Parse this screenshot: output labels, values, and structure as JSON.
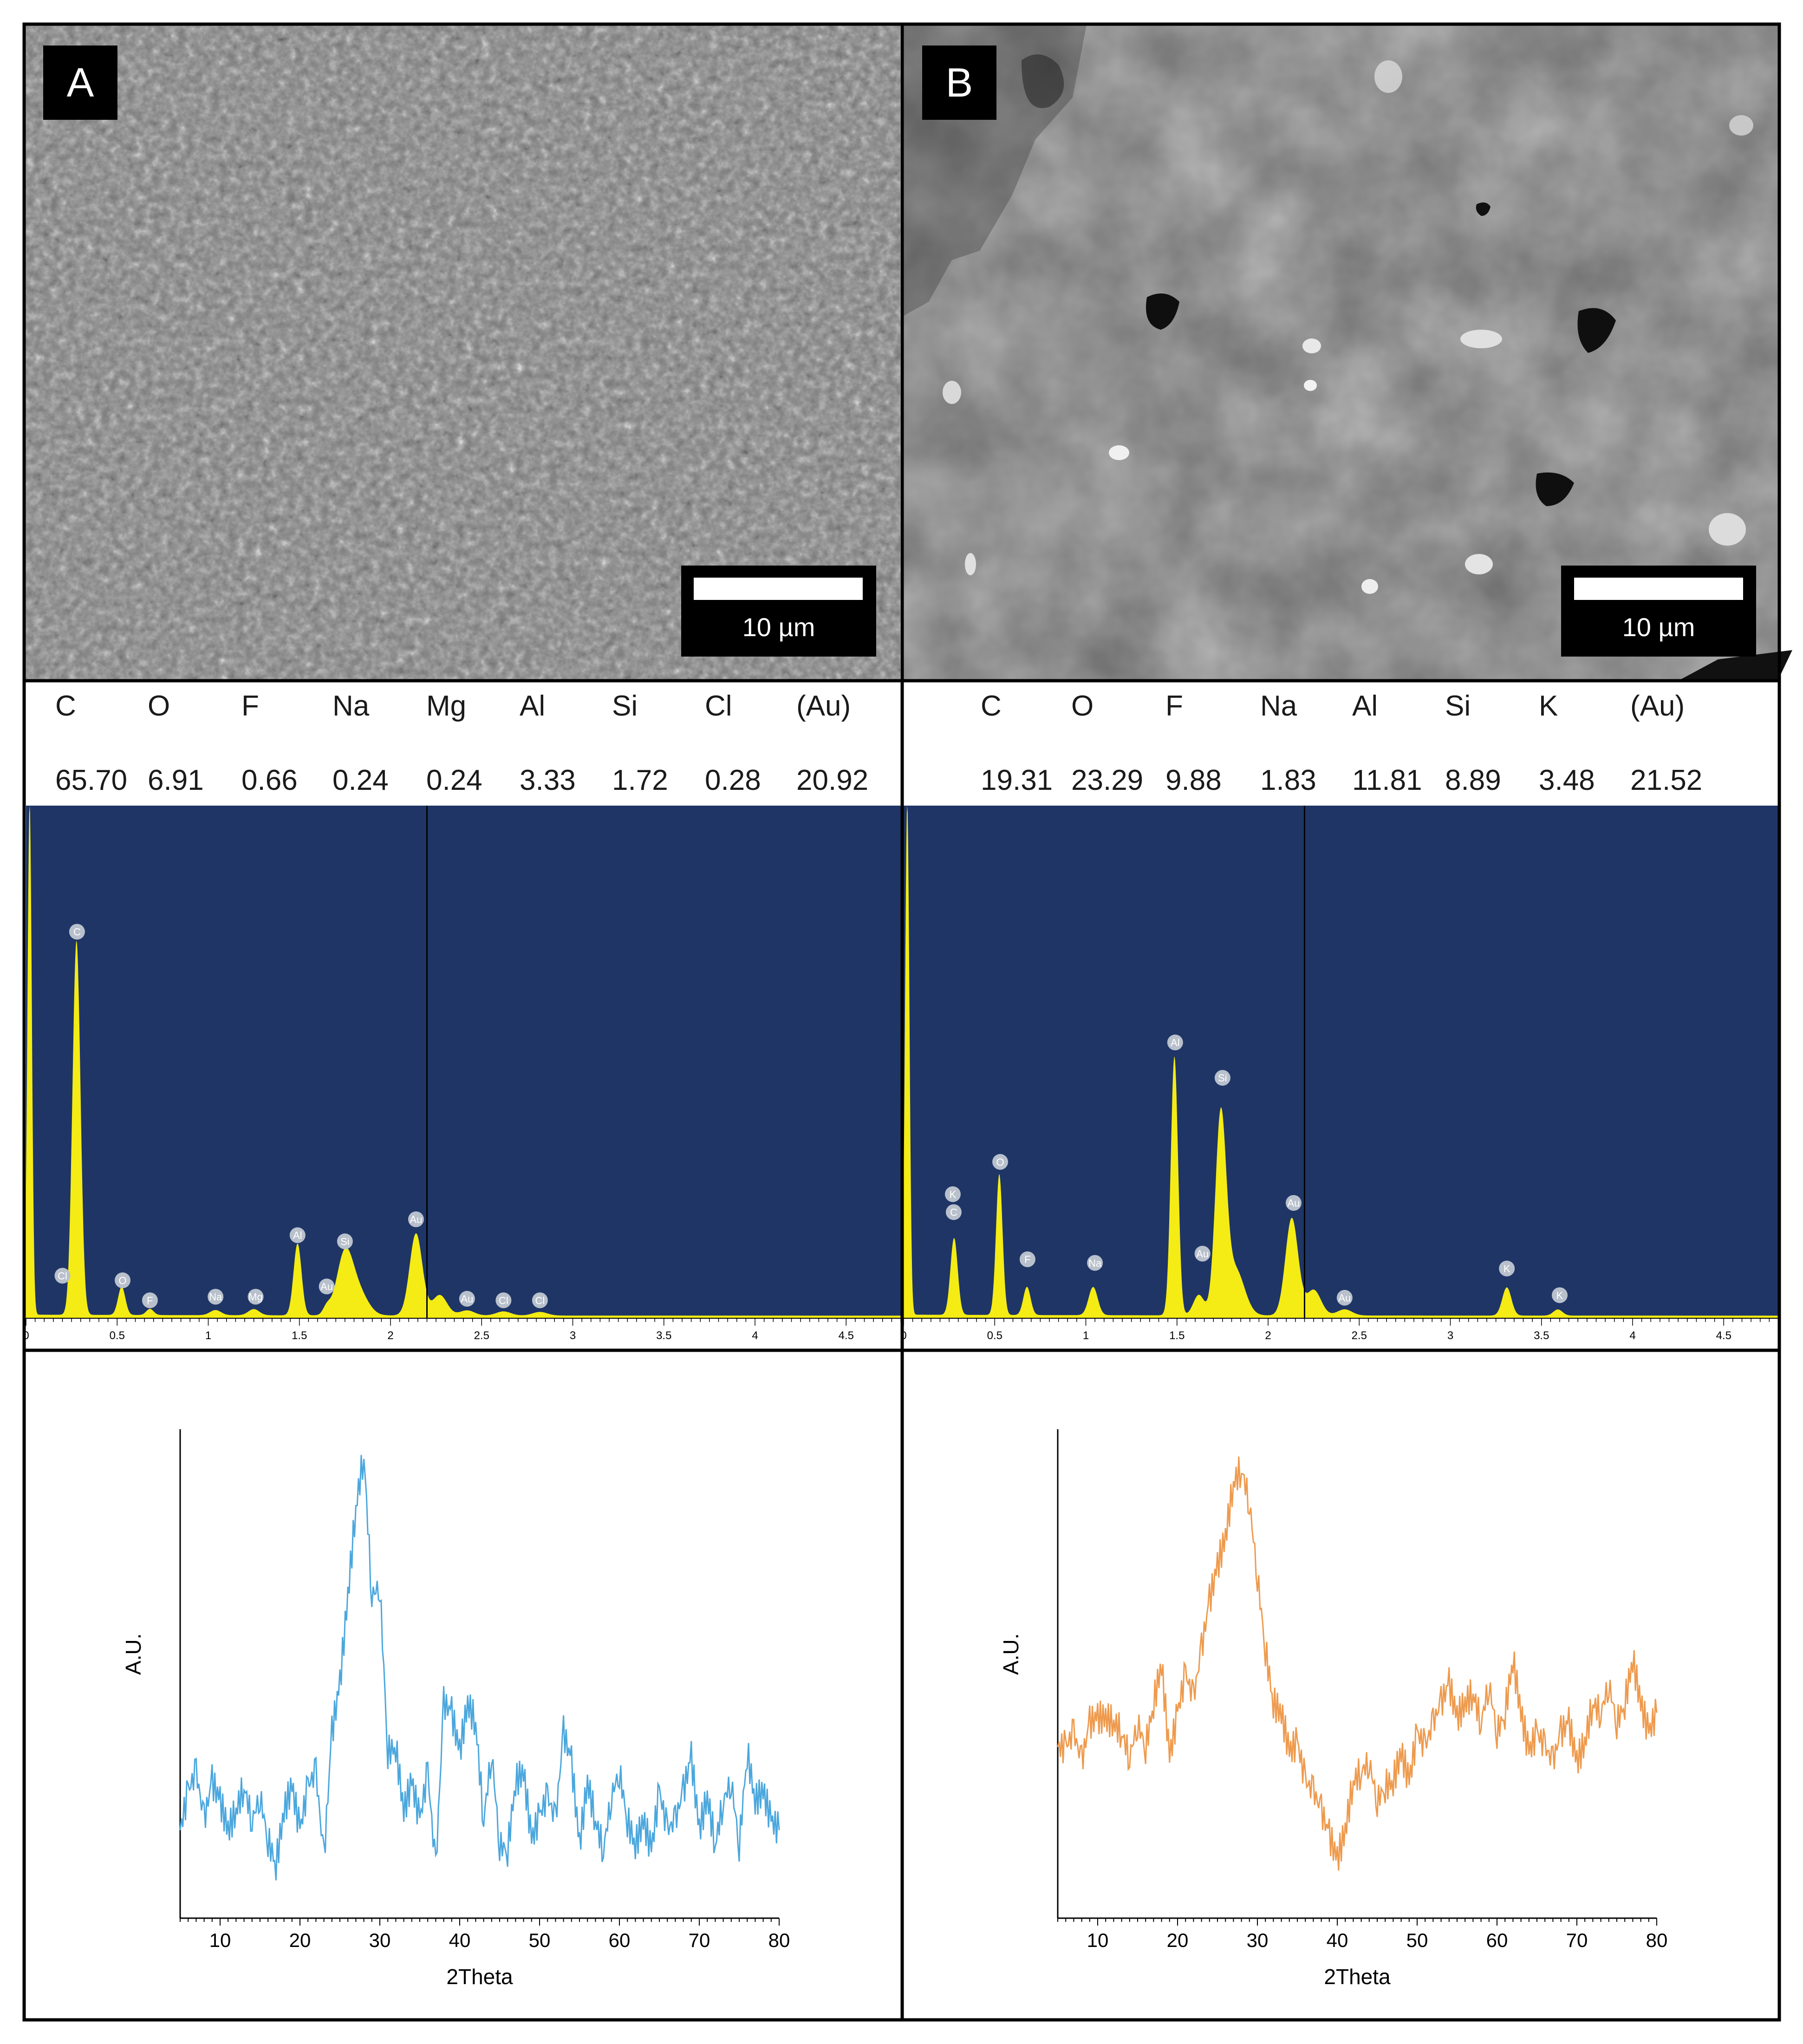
{
  "panels": [
    {
      "letter": "A",
      "scale_bar": "10 µm",
      "composition": {
        "elements": [
          "C",
          "O",
          "F",
          "Na",
          "Mg",
          "Al",
          "Si",
          "Cl",
          "(Au)"
        ],
        "values": [
          "65.70",
          "6.91",
          "0.66",
          "0.24",
          "0.24",
          "3.33",
          "1.72",
          "0.28",
          "20.92"
        ]
      }
    },
    {
      "letter": "B",
      "scale_bar": "10 µm",
      "composition": {
        "elements": [
          "C",
          "O",
          "F",
          "Na",
          "Al",
          "Si",
          "K",
          "(Au)"
        ],
        "values": [
          "19.31",
          "23.29",
          "9.88",
          "1.83",
          "11.81",
          "8.89",
          "3.48",
          "21.52"
        ]
      }
    }
  ],
  "colors": {
    "eds_background": "#1e3566",
    "eds_fill": "#f4ec14",
    "peak_label_fill": "#b8c0cc",
    "xrd_a": "#4ba7dd",
    "xrd_b": "#ee9a4d"
  },
  "chart_data": [
    {
      "type": "area",
      "panel": "A",
      "xlim": [
        0,
        4.8
      ],
      "x_ticks": [
        "0",
        "0.5",
        "1",
        "1.5",
        "2",
        "2.5",
        "3",
        "3.5",
        "4",
        "4.5"
      ],
      "marker_line_x": 2.2,
      "peaks": [
        {
          "x": 0.02,
          "y": 1.0,
          "w": 0.012
        },
        {
          "x": 0.277,
          "y": 0.73,
          "w": 0.022
        },
        {
          "x": 0.525,
          "y": 0.055,
          "w": 0.02
        },
        {
          "x": 0.68,
          "y": 0.012,
          "w": 0.02
        },
        {
          "x": 1.04,
          "y": 0.01,
          "w": 0.03
        },
        {
          "x": 1.25,
          "y": 0.012,
          "w": 0.03
        },
        {
          "x": 1.49,
          "y": 0.14,
          "w": 0.022
        },
        {
          "x": 1.65,
          "y": 0.015,
          "w": 0.02
        },
        {
          "x": 1.75,
          "y": 0.12,
          "w": 0.045
        },
        {
          "x": 1.83,
          "y": 0.04,
          "w": 0.05
        },
        {
          "x": 2.14,
          "y": 0.16,
          "w": 0.035
        },
        {
          "x": 2.27,
          "y": 0.04,
          "w": 0.04
        },
        {
          "x": 2.42,
          "y": 0.01,
          "w": 0.04
        },
        {
          "x": 2.62,
          "y": 0.008,
          "w": 0.04
        },
        {
          "x": 2.82,
          "y": 0.007,
          "w": 0.04
        }
      ],
      "peak_labels": [
        {
          "label": "Cl",
          "x": 0.2,
          "y": 0.083
        },
        {
          "label": "C",
          "x": 0.28,
          "y": 0.754
        },
        {
          "label": "O",
          "x": 0.53,
          "y": 0.074
        },
        {
          "label": "F",
          "x": 0.68,
          "y": 0.035
        },
        {
          "label": "Na",
          "x": 1.04,
          "y": 0.042
        },
        {
          "label": "Mg",
          "x": 1.26,
          "y": 0.042
        },
        {
          "label": "Al",
          "x": 1.49,
          "y": 0.162
        },
        {
          "label": "Si",
          "x": 1.75,
          "y": 0.15
        },
        {
          "label": "Au",
          "x": 1.65,
          "y": 0.062
        },
        {
          "label": "Au",
          "x": 2.14,
          "y": 0.193
        },
        {
          "label": "Au",
          "x": 2.42,
          "y": 0.038
        },
        {
          "label": "Cl",
          "x": 2.62,
          "y": 0.035
        },
        {
          "label": "Cl",
          "x": 2.82,
          "y": 0.035
        }
      ]
    },
    {
      "type": "area",
      "panel": "B",
      "xlim": [
        0,
        4.8
      ],
      "x_ticks": [
        "0",
        "0.5",
        "1",
        "1.5",
        "2",
        "2.5",
        "3",
        "3.5",
        "4",
        "4.5"
      ],
      "marker_line_x": 2.2,
      "peaks": [
        {
          "x": 0.02,
          "y": 1.0,
          "w": 0.012
        },
        {
          "x": 0.277,
          "y": 0.15,
          "w": 0.02
        },
        {
          "x": 0.525,
          "y": 0.275,
          "w": 0.018
        },
        {
          "x": 0.677,
          "y": 0.055,
          "w": 0.02
        },
        {
          "x": 1.04,
          "y": 0.055,
          "w": 0.025
        },
        {
          "x": 1.486,
          "y": 0.505,
          "w": 0.02
        },
        {
          "x": 1.62,
          "y": 0.04,
          "w": 0.03
        },
        {
          "x": 1.74,
          "y": 0.38,
          "w": 0.03
        },
        {
          "x": 1.82,
          "y": 0.09,
          "w": 0.05
        },
        {
          "x": 2.13,
          "y": 0.19,
          "w": 0.035
        },
        {
          "x": 2.25,
          "y": 0.05,
          "w": 0.04
        },
        {
          "x": 2.42,
          "y": 0.012,
          "w": 0.04
        },
        {
          "x": 3.31,
          "y": 0.055,
          "w": 0.025
        },
        {
          "x": 3.59,
          "y": 0.012,
          "w": 0.025
        }
      ],
      "peak_labels": [
        {
          "label": "K",
          "x": 0.27,
          "y": 0.242
        },
        {
          "label": "C",
          "x": 0.275,
          "y": 0.207
        },
        {
          "label": "O",
          "x": 0.53,
          "y": 0.305
        },
        {
          "label": "F",
          "x": 0.68,
          "y": 0.115
        },
        {
          "label": "Na",
          "x": 1.05,
          "y": 0.108
        },
        {
          "label": "Al",
          "x": 1.49,
          "y": 0.538
        },
        {
          "label": "Si",
          "x": 1.75,
          "y": 0.469
        },
        {
          "label": "Au",
          "x": 1.64,
          "y": 0.126
        },
        {
          "label": "Au",
          "x": 2.14,
          "y": 0.225
        },
        {
          "label": "Au",
          "x": 2.42,
          "y": 0.04
        },
        {
          "label": "K",
          "x": 3.31,
          "y": 0.097
        },
        {
          "label": "K",
          "x": 3.6,
          "y": 0.045
        }
      ]
    },
    {
      "type": "line",
      "panel": "A",
      "xlabel": "2Theta",
      "ylabel": "A.U.",
      "xlim": [
        5,
        80
      ],
      "ylim": [
        0,
        100
      ],
      "x_ticks": [
        10,
        20,
        30,
        40,
        50,
        60,
        70,
        80
      ],
      "x": [
        5,
        6,
        7,
        8,
        9,
        10,
        11,
        12,
        13,
        14,
        15,
        16,
        17,
        18,
        19,
        20,
        21,
        22,
        23,
        24,
        25,
        26,
        27,
        28,
        29,
        30,
        31,
        32,
        33,
        34,
        35,
        36,
        37,
        38,
        39,
        40,
        41,
        42,
        43,
        44,
        45,
        46,
        47,
        48,
        49,
        50,
        51,
        52,
        53,
        54,
        55,
        56,
        57,
        58,
        59,
        60,
        61,
        62,
        63,
        64,
        65,
        66,
        67,
        68,
        69,
        70,
        71,
        72,
        73,
        74,
        75,
        76,
        77,
        78,
        79,
        80
      ],
      "y": [
        18,
        26,
        30,
        20,
        28,
        24,
        18,
        22,
        27,
        20,
        25,
        16,
        11,
        22,
        27,
        18,
        27,
        30,
        12,
        38,
        48,
        66,
        84,
        95,
        66,
        68,
        34,
        35,
        22,
        28,
        20,
        30,
        10,
        44,
        42,
        34,
        44,
        40,
        20,
        34,
        15,
        14,
        28,
        30,
        16,
        21,
        25,
        20,
        38,
        32,
        15,
        28,
        20,
        14,
        25,
        30,
        20,
        15,
        20,
        14,
        26,
        18,
        20,
        26,
        33,
        18,
        25,
        15,
        24,
        28,
        15,
        34,
        24,
        26,
        20,
        18
      ]
    },
    {
      "type": "line",
      "panel": "B",
      "xlabel": "2Theta",
      "ylabel": "A.U.",
      "xlim": [
        5,
        80
      ],
      "ylim": [
        0,
        100
      ],
      "x_ticks": [
        10,
        20,
        30,
        40,
        50,
        60,
        70,
        80
      ],
      "x": [
        5,
        6,
        7,
        8,
        9,
        10,
        11,
        12,
        13,
        14,
        15,
        16,
        17,
        18,
        19,
        20,
        21,
        22,
        23,
        24,
        25,
        26,
        27,
        28,
        29,
        30,
        31,
        32,
        33,
        34,
        35,
        36,
        37,
        38,
        39,
        40,
        41,
        42,
        43,
        44,
        45,
        46,
        47,
        48,
        49,
        50,
        51,
        52,
        53,
        54,
        55,
        56,
        57,
        58,
        59,
        60,
        61,
        62,
        63,
        64,
        65,
        66,
        67,
        68,
        69,
        70,
        71,
        72,
        73,
        74,
        75,
        76,
        77,
        78,
        79,
        80
      ],
      "y": [
        35,
        35,
        38,
        32,
        40,
        41,
        41,
        40,
        38,
        33,
        40,
        35,
        44,
        52,
        33,
        42,
        50,
        45,
        55,
        65,
        72,
        78,
        89,
        92,
        85,
        70,
        55,
        44,
        42,
        34,
        36,
        28,
        26,
        22,
        17,
        12,
        18,
        28,
        30,
        32,
        24,
        27,
        28,
        34,
        28,
        38,
        35,
        40,
        44,
        48,
        41,
        44,
        46,
        40,
        48,
        38,
        42,
        53,
        42,
        34,
        38,
        35,
        32,
        38,
        40,
        32,
        36,
        44,
        42,
        48,
        40,
        44,
        53,
        44,
        38,
        42
      ]
    }
  ]
}
